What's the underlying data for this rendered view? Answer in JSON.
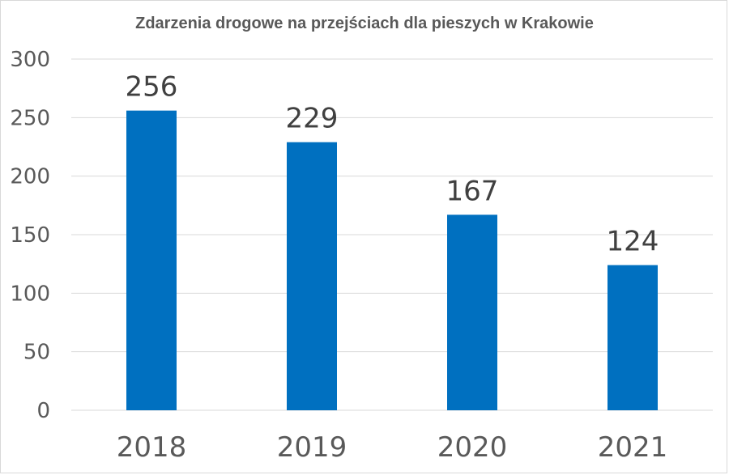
{
  "chart_data": {
    "type": "bar",
    "title": "Zdarzenia drogowe na przejściach dla pieszych w Krakowie",
    "categories": [
      "2018",
      "2019",
      "2020",
      "2021"
    ],
    "values": [
      256,
      229,
      167,
      124
    ],
    "ylim": [
      0,
      300
    ],
    "yticks": [
      0,
      50,
      100,
      150,
      200,
      250,
      300
    ],
    "grid": true,
    "bar_color": "#0070c0",
    "gridline_color": "#d9d9d9"
  }
}
